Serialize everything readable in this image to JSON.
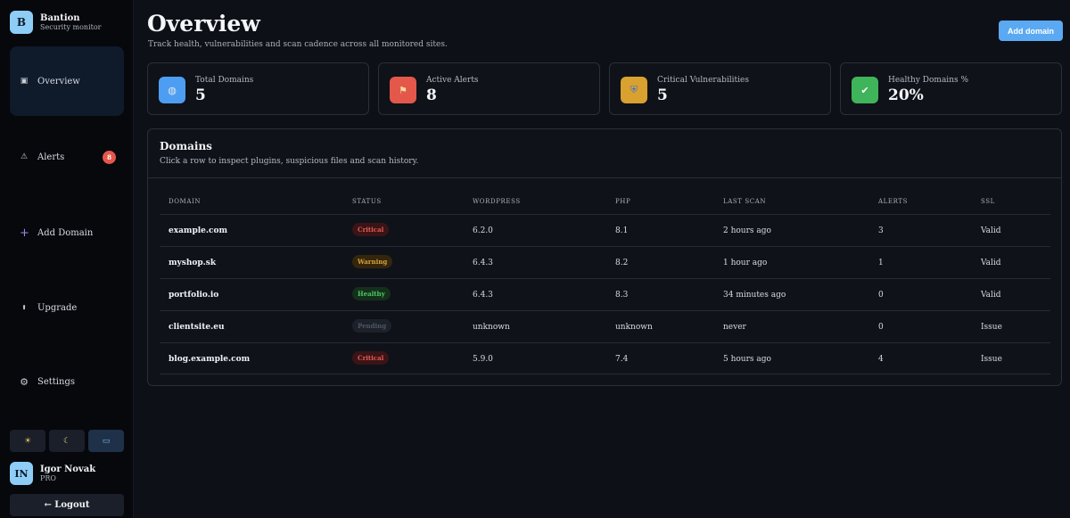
{
  "brand": {
    "logo_letter": "B",
    "name": "Bantion",
    "subtitle": "Security monitor"
  },
  "sidebar": {
    "items": [
      {
        "label": "Overview",
        "icon": "square-dot-icon",
        "glyph": "▣",
        "active": true
      },
      {
        "label": "Alerts",
        "icon": "warning-triangle-icon",
        "glyph": "⚠",
        "badge": "8"
      },
      {
        "label": "Add Domain",
        "icon": "plus-icon",
        "glyph": "+"
      },
      {
        "label": "Upgrade",
        "icon": "up-arrow-icon",
        "glyph": "⬆"
      },
      {
        "label": "Settings",
        "icon": "gear-icon",
        "glyph": "⚙"
      }
    ],
    "theme_buttons": [
      {
        "name": "sun-icon",
        "glyph": "☀"
      },
      {
        "name": "moon-icon",
        "glyph": "☾"
      },
      {
        "name": "monitor-icon",
        "glyph": "▭"
      }
    ]
  },
  "user": {
    "initials": "IN",
    "name": "Igor Novak",
    "plan": "PRO",
    "logout_label": "← Logout"
  },
  "header": {
    "title": "Overview",
    "subtitle": "Track health, vulnerabilities and scan cadence across all monitored sites.",
    "add_button": "Add domain"
  },
  "stats": [
    {
      "label": "Total Domains",
      "value": "5",
      "icon": "globe-icon",
      "glyph": "◍",
      "color": "#4d9ef2"
    },
    {
      "label": "Active Alerts",
      "value": "8",
      "icon": "siren-icon",
      "glyph": "⚑",
      "color": "#e4574b"
    },
    {
      "label": "Critical Vulnerabilities",
      "value": "5",
      "icon": "shield-icon",
      "glyph": "⛨",
      "color": "#d9a12f"
    },
    {
      "label": "Healthy Domains %",
      "value": "20%",
      "icon": "checkmark-icon",
      "glyph": "✔",
      "color": "#3fb45a"
    }
  ],
  "domains_panel": {
    "title": "Domains",
    "subtitle": "Click a row to inspect plugins, suspicious files and scan history.",
    "columns": [
      "Domain",
      "Status",
      "WordPress",
      "PHP",
      "Last scan",
      "Alerts",
      "SSL"
    ],
    "rows": [
      {
        "domain": "example.com",
        "status": "Critical",
        "status_type": "critical",
        "wordpress": "6.2.0",
        "php": "8.1",
        "last_scan": "2 hours ago",
        "alerts": "3",
        "ssl": "Valid"
      },
      {
        "domain": "myshop.sk",
        "status": "Warning",
        "status_type": "warning",
        "wordpress": "6.4.3",
        "php": "8.2",
        "last_scan": "1 hour ago",
        "alerts": "1",
        "ssl": "Valid"
      },
      {
        "domain": "portfolio.io",
        "status": "Healthy",
        "status_type": "healthy",
        "wordpress": "6.4.3",
        "php": "8.3",
        "last_scan": "34 minutes ago",
        "alerts": "0",
        "ssl": "Valid"
      },
      {
        "domain": "clientsite.eu",
        "status": "Pending",
        "status_type": "pending",
        "wordpress": "unknown",
        "php": "unknown",
        "last_scan": "never",
        "alerts": "0",
        "ssl": "Issue"
      },
      {
        "domain": "blog.example.com",
        "status": "Critical",
        "status_type": "critical",
        "wordpress": "5.9.0",
        "php": "7.4",
        "last_scan": "5 hours ago",
        "alerts": "4",
        "ssl": "Issue"
      }
    ]
  }
}
